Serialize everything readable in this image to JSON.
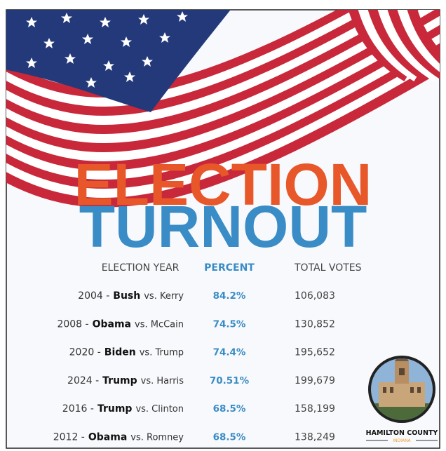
{
  "title": {
    "line1": "ELECTION",
    "line2": "TURNOUT"
  },
  "table": {
    "headers": [
      "ELECTION YEAR",
      "PERCENT",
      "TOTAL VOTES"
    ],
    "rows": [
      {
        "year": "2004 -",
        "winner": "Bush",
        "opponent": "vs. Kerry",
        "percent": "84.2%",
        "votes": "106,083"
      },
      {
        "year": "2008 -",
        "winner": "Obama",
        "opponent": "vs. McCain",
        "percent": "74.5%",
        "votes": "130,852"
      },
      {
        "year": "2020 -",
        "winner": "Biden",
        "opponent": "vs. Trump",
        "percent": "74.4%",
        "votes": "195,652"
      },
      {
        "year": "2024 -",
        "winner": "Trump",
        "opponent": "vs. Harris",
        "percent": "70.51%",
        "votes": "199,679"
      },
      {
        "year": "2016 -",
        "winner": "Trump",
        "opponent": "vs. Clinton",
        "percent": "68.5%",
        "votes": "158,199"
      },
      {
        "year": "2012 -",
        "winner": "Obama",
        "opponent": "vs. Romney",
        "percent": "68.5%",
        "votes": "138,249"
      }
    ]
  },
  "logo": {
    "name": "HAMILTON COUNTY",
    "state": "INDIANA"
  }
}
